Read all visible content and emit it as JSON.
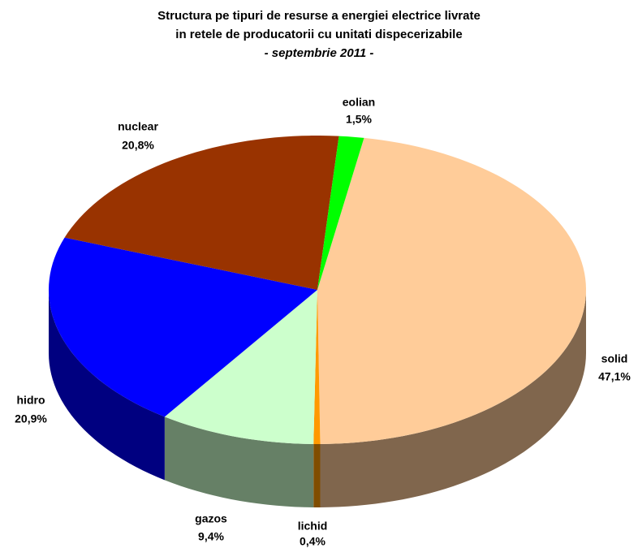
{
  "chart_data": {
    "type": "pie3d",
    "title": [
      "Structura pe tipuri de resurse a energiei electrice livrate",
      "in retele de producatorii cu unitati dispecerizabile",
      "- septembrie 2011 -"
    ],
    "categories": [
      "solid",
      "lichid",
      "gazos",
      "hidro",
      "nuclear",
      "eolian"
    ],
    "values": [
      47.1,
      0.4,
      9.4,
      20.9,
      20.8,
      1.5
    ],
    "value_labels": [
      "47,1%",
      "0,4%",
      "9,4%",
      "20,9%",
      "20,8%",
      "1,5%"
    ],
    "colors": [
      "#ffcc99",
      "#ff9900",
      "#ccffcc",
      "#0000ff",
      "#993300",
      "#00ff00"
    ]
  }
}
